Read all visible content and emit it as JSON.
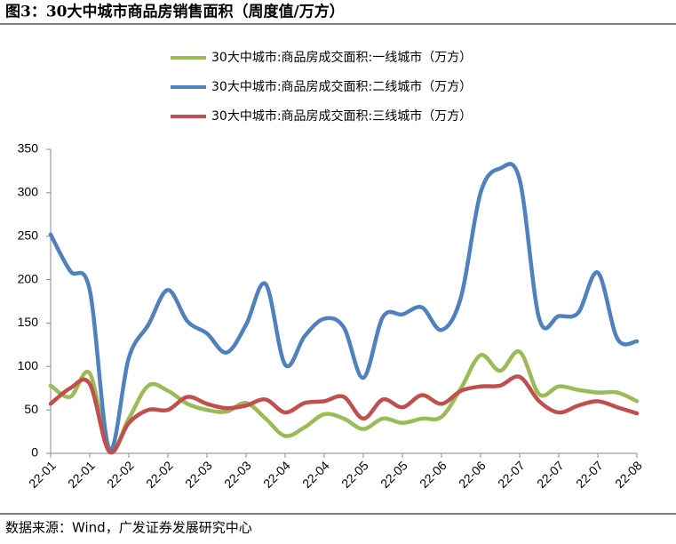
{
  "chart_data": {
    "type": "line",
    "title": "图3：30大中城市商品房销售面积（周度值/万方）",
    "source": "数据来源：Wind，广发证券发展研究中心",
    "categories": [
      "22-01",
      null,
      "22-01",
      null,
      "22-02",
      null,
      "22-02",
      null,
      "22-03",
      null,
      "22-03",
      null,
      "22-04",
      null,
      "22-04",
      null,
      "22-05",
      null,
      "22-05",
      null,
      "22-06",
      null,
      "22-06",
      null,
      "22-07",
      null,
      "22-07",
      null,
      "22-07",
      null,
      "22-08"
    ],
    "series": [
      {
        "name": "30大中城市:商品房成交面积:一线城市（万方）",
        "color": "#9bbb59",
        "values": [
          78,
          65,
          92,
          3,
          40,
          78,
          72,
          57,
          50,
          48,
          58,
          40,
          20,
          30,
          45,
          40,
          28,
          40,
          35,
          40,
          42,
          75,
          113,
          95,
          117,
          68,
          77,
          73,
          70,
          70,
          60
        ]
      },
      {
        "name": "30大中城市:商品房成交面积:二线城市（万方）",
        "color": "#4f81bd",
        "values": [
          252,
          210,
          188,
          5,
          110,
          148,
          188,
          152,
          138,
          116,
          148,
          195,
          102,
          135,
          155,
          145,
          87,
          157,
          160,
          168,
          142,
          180,
          300,
          328,
          315,
          155,
          158,
          162,
          208,
          132,
          129
        ]
      },
      {
        "name": "30大中城市:商品房成交面积:三线城市（万方）",
        "color": "#c0504d",
        "values": [
          57,
          75,
          80,
          2,
          35,
          50,
          50,
          65,
          57,
          52,
          55,
          62,
          47,
          58,
          60,
          65,
          40,
          62,
          53,
          67,
          57,
          72,
          77,
          78,
          88,
          60,
          47,
          55,
          60,
          53,
          46
        ]
      }
    ],
    "ylim": [
      0,
      350
    ],
    "yticks": [
      0,
      50,
      100,
      150,
      200,
      250,
      300,
      350
    ]
  }
}
